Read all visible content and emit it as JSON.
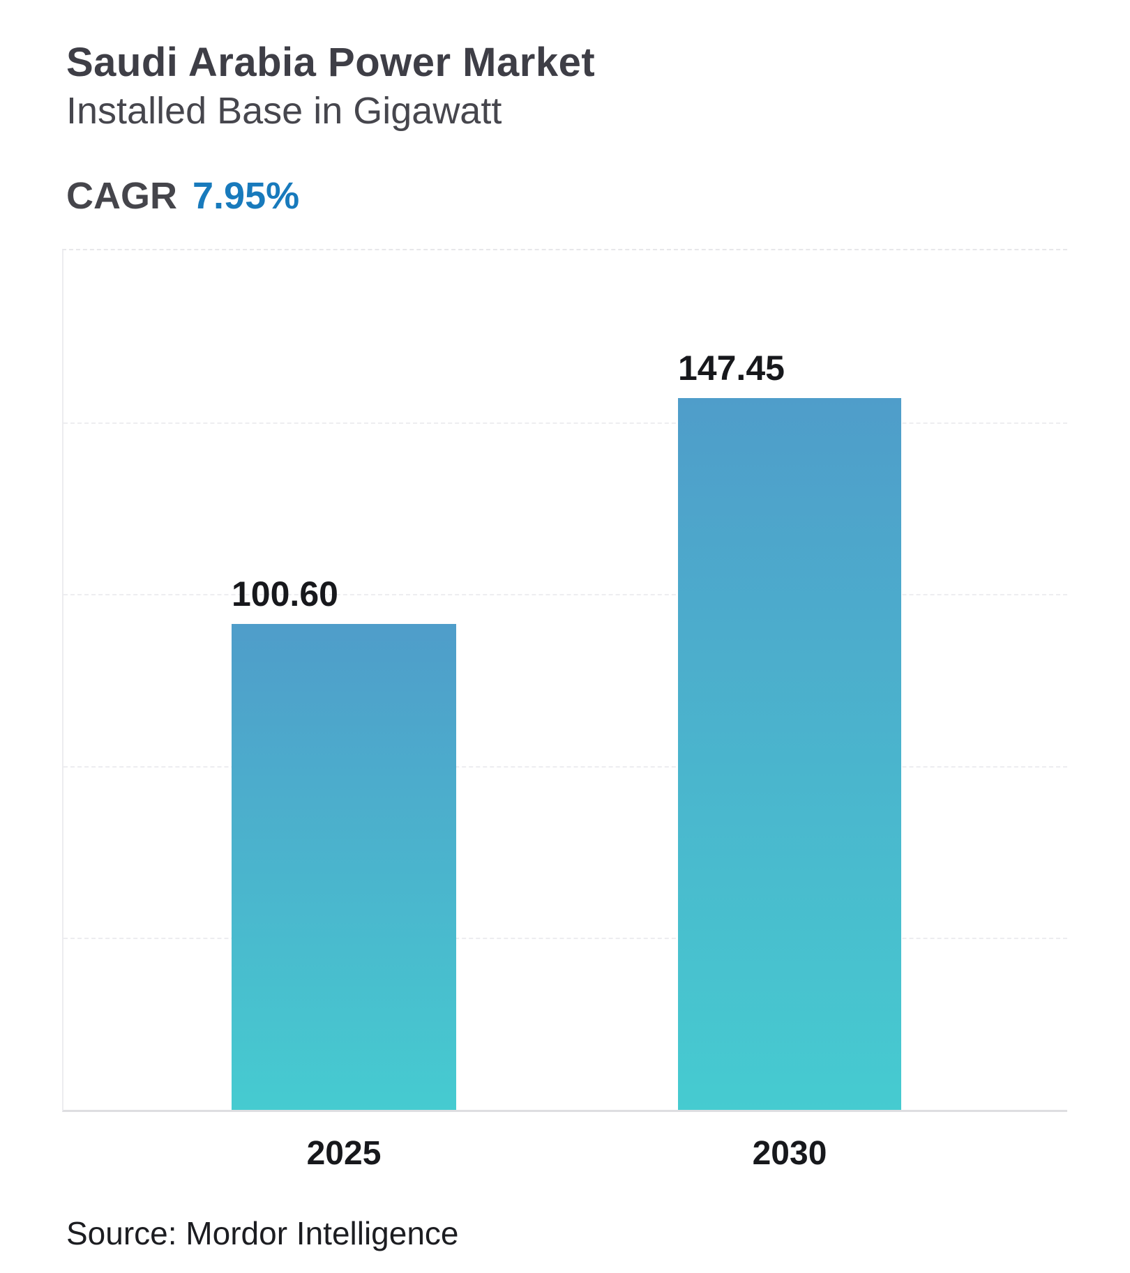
{
  "header": {
    "title": "Saudi Arabia Power Market",
    "subtitle": "Installed Base in Gigawatt",
    "cagr_label": "CAGR",
    "cagr_value": "7.95%"
  },
  "footer": {
    "source": "Source: Mordor Intelligence"
  },
  "colors": {
    "accent_blue": "#187abc",
    "bar_gradient_top": "#4f9dca",
    "bar_gradient_bottom": "#46cbd0",
    "title_text": "#3e3e46",
    "value_text": "#17181c",
    "gridline": "#ededf0",
    "axis_line": "#dedee1"
  },
  "chart_data": {
    "type": "bar",
    "title": "Saudi Arabia Power Market",
    "subtitle": "Installed Base in Gigawatt",
    "categories": [
      "2025",
      "2030"
    ],
    "values": [
      100.6,
      147.45
    ],
    "value_labels": [
      "100.60",
      "147.45"
    ],
    "xlabel": "",
    "ylabel": "Installed Base (Gigawatt)",
    "ylim": [
      0,
      178
    ],
    "grid": "horizontal-dashed-5-divisions",
    "legend": "none",
    "bar_label_alignment": "left-of-bar",
    "cagr": "7.95%"
  }
}
